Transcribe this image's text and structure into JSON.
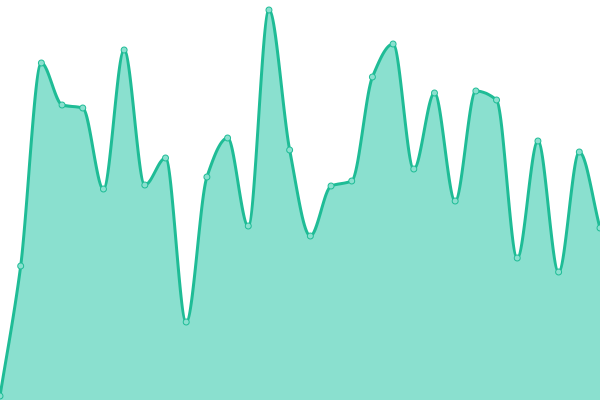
{
  "chart_data": {
    "type": "area",
    "title": "",
    "xlabel": "",
    "ylabel": "",
    "x": [
      0,
      1,
      2,
      3,
      4,
      5,
      6,
      7,
      8,
      9,
      10,
      11,
      12,
      13,
      14,
      15,
      16,
      17,
      18,
      19,
      20,
      21,
      22,
      23,
      24,
      25,
      26,
      27,
      28,
      29
    ],
    "values": [
      4,
      134,
      337,
      295,
      292,
      211,
      350,
      215,
      242,
      78,
      223,
      262,
      174,
      390,
      250,
      164,
      214,
      219,
      323,
      356,
      231,
      307,
      199,
      309,
      300,
      142,
      259,
      128,
      248,
      172
    ],
    "ylim": [
      0,
      400
    ],
    "axes_visible": false,
    "grid": false,
    "curve": "smooth",
    "markers": true,
    "colors": {
      "line": "#1fbc96",
      "fill": "#8ae0cf",
      "marker_fill": "#8ae0cf",
      "marker_stroke": "#1fbc96"
    }
  }
}
